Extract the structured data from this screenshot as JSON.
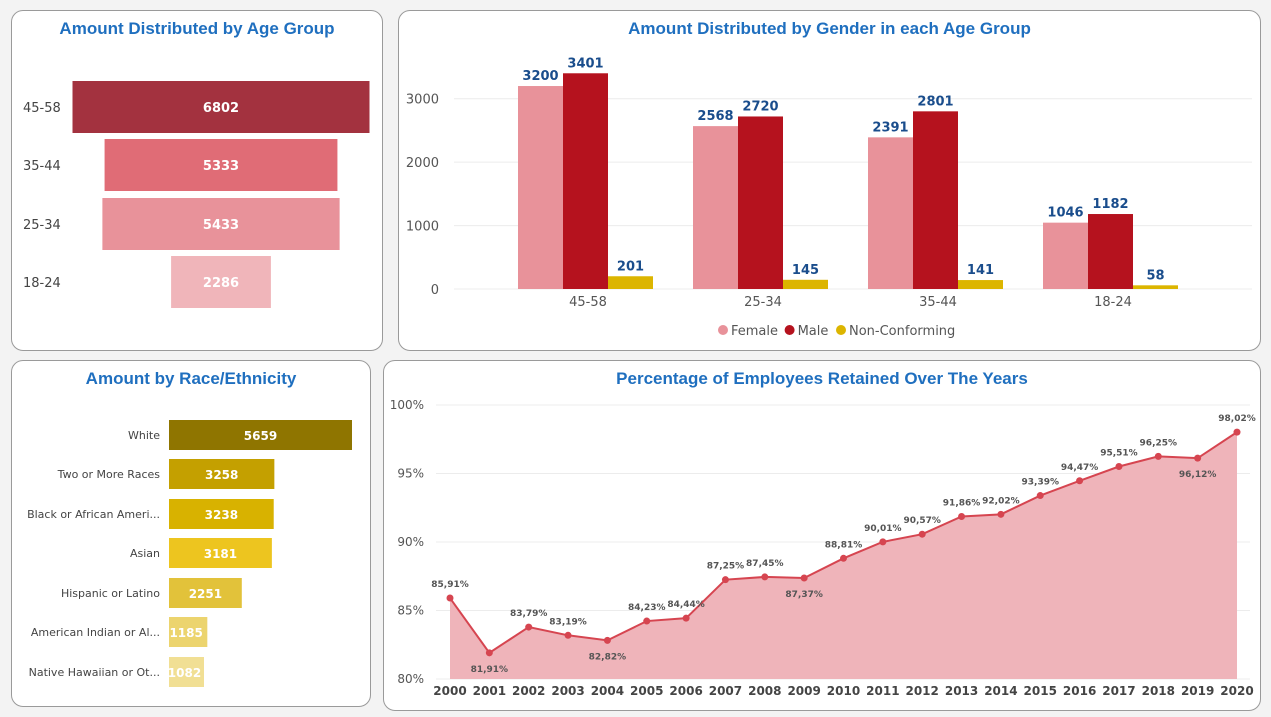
{
  "colors": {
    "title": "#1f6fbf",
    "female": "#e8929a",
    "male": "#b5121e",
    "nonconforming": "#dcb500",
    "label_blue": "#1a4d8c",
    "line": "#d64550",
    "area": "#efb4ba"
  },
  "chart_data": [
    {
      "type": "bar",
      "orientation": "horizontal-funnel",
      "title": "Amount Distributed by Age Group",
      "categories": [
        "45-58",
        "35-44",
        "25-34",
        "18-24"
      ],
      "values": [
        6802,
        5333,
        5433,
        2286
      ],
      "colors": [
        "#a3323f",
        "#e06c76",
        "#e8929a",
        "#f0b5ba"
      ]
    },
    {
      "type": "bar",
      "title": "Amount Distributed by Gender in each Age Group",
      "categories": [
        "45-58",
        "25-34",
        "35-44",
        "18-24"
      ],
      "series": [
        {
          "name": "Female",
          "values": [
            3200,
            2568,
            2391,
            1046
          ]
        },
        {
          "name": "Male",
          "values": [
            3401,
            2720,
            2801,
            1182
          ]
        },
        {
          "name": "Non-Conforming",
          "values": [
            201,
            145,
            141,
            58
          ]
        }
      ],
      "yticks": [
        0,
        1000,
        2000,
        3000
      ],
      "ylim": [
        0,
        3500
      ],
      "legend": "bottom-center",
      "grid": true
    },
    {
      "type": "bar",
      "orientation": "horizontal",
      "title": "Amount by Race/Ethnicity",
      "categories": [
        "White",
        "Two or More Races",
        "Black or African Ameri...",
        "Asian",
        "Hispanic or Latino",
        "American Indian or Al...",
        "Native Hawaiian or Ot..."
      ],
      "values": [
        5659,
        3258,
        3238,
        3181,
        2251,
        1185,
        1082
      ],
      "colors": [
        "#8f7500",
        "#c4a000",
        "#d8b200",
        "#edc51f",
        "#e2c23a",
        "#ecd46e",
        "#f1df94"
      ],
      "xlim": [
        0,
        5659
      ]
    },
    {
      "type": "area",
      "title": "Percentage of Employees Retained Over The Years",
      "x": [
        "2000",
        "2001",
        "2002",
        "2003",
        "2004",
        "2005",
        "2006",
        "2007",
        "2008",
        "2009",
        "2010",
        "2011",
        "2012",
        "2013",
        "2014",
        "2015",
        "2016",
        "2017",
        "2018",
        "2019",
        "2020"
      ],
      "values": [
        85.91,
        81.91,
        83.79,
        83.19,
        82.82,
        84.23,
        84.44,
        87.25,
        87.45,
        87.37,
        88.81,
        90.01,
        90.57,
        91.86,
        92.02,
        93.39,
        94.47,
        95.51,
        96.25,
        96.12,
        98.02
      ],
      "value_labels": [
        "85,91%",
        "81,91%",
        "83,79%",
        "83,19%",
        "82,82%",
        "84,23%",
        "84,44%",
        "87,25%",
        "87,45%",
        "87,37%",
        "88,81%",
        "90,01%",
        "90,57%",
        "91,86%",
        "92,02%",
        "93,39%",
        "94,47%",
        "95,51%",
        "96,25%",
        "96,12%",
        "98,02%"
      ],
      "label_pos": [
        "above",
        "below",
        "above",
        "above",
        "below",
        "above",
        "above",
        "above",
        "above",
        "below",
        "above",
        "above",
        "above",
        "above",
        "above",
        "above",
        "above",
        "above",
        "above",
        "below",
        "above"
      ],
      "ylim": [
        80,
        100
      ],
      "yticks": [
        80,
        85,
        90,
        95,
        100
      ],
      "ytick_labels": [
        "80%",
        "85%",
        "90%",
        "95%",
        "100%"
      ],
      "grid": true
    }
  ]
}
